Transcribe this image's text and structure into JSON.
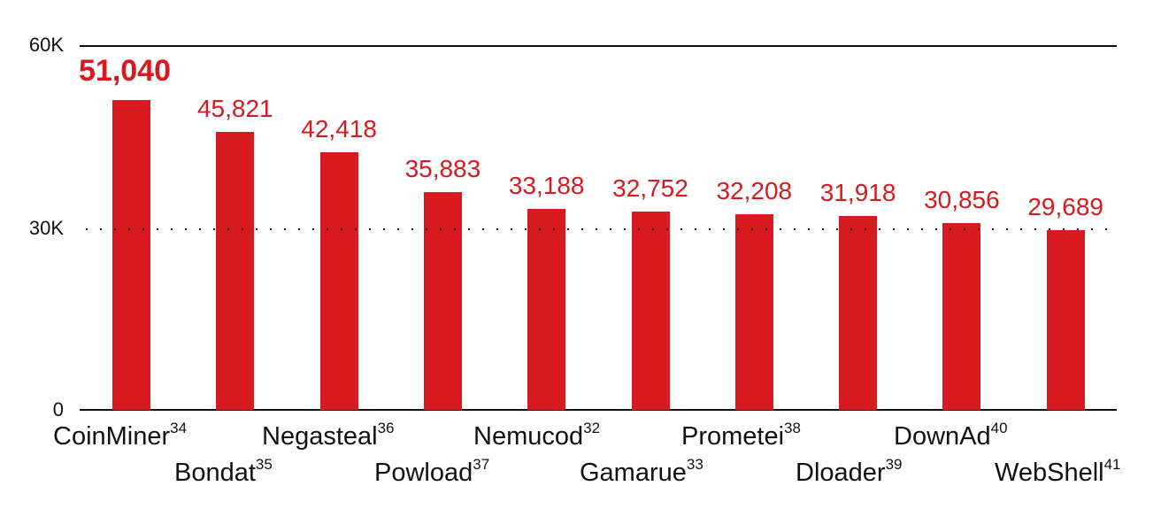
{
  "chart_data": {
    "type": "bar",
    "title": "",
    "xlabel": "",
    "ylabel": "",
    "ylim": [
      0,
      60000
    ],
    "yticks": [
      "0",
      "30K",
      "60K"
    ],
    "grid": {
      "60K": "solid",
      "30K": "dotted",
      "0": "solid-baseline"
    },
    "categories": [
      "CoinMiner",
      "Bondat",
      "Negasteal",
      "Powload",
      "Nemucod",
      "Gamarue",
      "Prometei",
      "Dloader",
      "DownAd",
      "WebShell"
    ],
    "footnotes": [
      "34",
      "35",
      "36",
      "37",
      "32",
      "33",
      "38",
      "39",
      "40",
      "41"
    ],
    "values": [
      51040,
      45821,
      42418,
      35883,
      33188,
      32752,
      32208,
      31918,
      30856,
      29689
    ],
    "value_labels": [
      "51,040",
      "45,821",
      "42,418",
      "35,883",
      "33,188",
      "32,752",
      "32,208",
      "31,918",
      "30,856",
      "29,689"
    ],
    "bar_color": "#d71920",
    "label_color": "#d71920",
    "highlighted_index": 0
  },
  "axis": {
    "tick_60k": "60K",
    "tick_30k": "30K",
    "tick_0": "0"
  },
  "bars": [
    {
      "name": "CoinMiner",
      "sup": "34",
      "label": "51,040"
    },
    {
      "name": "Bondat",
      "sup": "35",
      "label": "45,821"
    },
    {
      "name": "Negasteal",
      "sup": "36",
      "label": "42,418"
    },
    {
      "name": "Powload",
      "sup": "37",
      "label": "35,883"
    },
    {
      "name": "Nemucod",
      "sup": "32",
      "label": "33,188"
    },
    {
      "name": "Gamarue",
      "sup": "33",
      "label": "32,752"
    },
    {
      "name": "Prometei",
      "sup": "38",
      "label": "32,208"
    },
    {
      "name": "Dloader",
      "sup": "39",
      "label": "31,918"
    },
    {
      "name": "DownAd",
      "sup": "40",
      "label": "30,856"
    },
    {
      "name": "WebShell",
      "sup": "41",
      "label": "29,689"
    }
  ]
}
